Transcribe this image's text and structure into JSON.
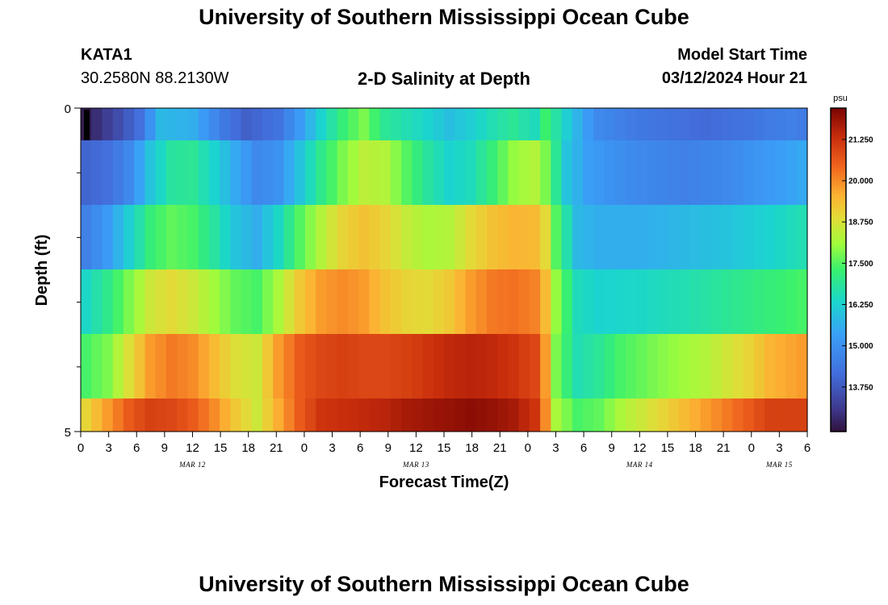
{
  "page": {
    "title": "University of Southern Mississippi Ocean Cube",
    "station": "KATA1",
    "coordinates": "30.2580N  88.2130W",
    "subtitle": "2-D Salinity at Depth",
    "model_start_label": "Model Start Time",
    "model_start_value": "03/12/2024 Hour 21",
    "bottom_title": "University of Southern Mississippi Ocean Cube"
  },
  "chart_data": {
    "type": "heatmap",
    "title": "2-D Salinity at Depth",
    "xlabel": "Forecast Time(Z)",
    "ylabel": "Depth (ft)",
    "units": "psu",
    "ylim": [
      0,
      5
    ],
    "y_ticks": [
      "0",
      "5"
    ],
    "x_tick_labels": [
      "0",
      "3",
      "6",
      "9",
      "12",
      "15",
      "18",
      "21",
      "0",
      "3",
      "6",
      "9",
      "12",
      "15",
      "18",
      "21",
      "0",
      "3",
      "6",
      "9",
      "12",
      "15",
      "18",
      "21",
      "0",
      "3",
      "6"
    ],
    "date_labels": [
      {
        "label": "MAR 12",
        "hour_index": 4
      },
      {
        "label": "MAR 13",
        "hour_index": 12
      },
      {
        "label": "MAR 14",
        "hour_index": 20
      },
      {
        "label": "MAR 15",
        "hour_index": 25
      }
    ],
    "colorbar": {
      "min": 12.4,
      "max": 22.2,
      "tick_values": [
        21.25,
        20.0,
        18.75,
        17.5,
        16.25,
        15.0,
        13.75
      ],
      "tick_labels": [
        "21.250",
        "20.000",
        "18.750",
        "17.500",
        "16.250",
        "15.000",
        "13.750"
      ]
    },
    "depth_layers": [
      {
        "name": "layer-1",
        "keyframes": [
          [
            0,
            12.6
          ],
          [
            1,
            12.9
          ],
          [
            3,
            13.5
          ],
          [
            5,
            14.2
          ],
          [
            7,
            15.8
          ],
          [
            10,
            15.6
          ],
          [
            13,
            14.4
          ],
          [
            15,
            13.9
          ],
          [
            18,
            14.3
          ],
          [
            20,
            15.2
          ],
          [
            22,
            16.3
          ],
          [
            24,
            17.2
          ],
          [
            26,
            17.8
          ],
          [
            28,
            16.9
          ],
          [
            30,
            16.6
          ],
          [
            32,
            16.3
          ],
          [
            34,
            15.9
          ],
          [
            36,
            16.2
          ],
          [
            38,
            16.6
          ],
          [
            40,
            16.9
          ],
          [
            42,
            16.5
          ],
          [
            43,
            17.3
          ],
          [
            45,
            16.2
          ],
          [
            47,
            15.2
          ],
          [
            48,
            14.8
          ],
          [
            50,
            14.6
          ],
          [
            52,
            14.4
          ],
          [
            54,
            14.3
          ],
          [
            56,
            14.2
          ],
          [
            58,
            14.1
          ],
          [
            60,
            14.2
          ],
          [
            62,
            14.3
          ],
          [
            64,
            14.5
          ],
          [
            66,
            14.6
          ],
          [
            67,
            14.5
          ]
        ]
      },
      {
        "name": "layer-2",
        "keyframes": [
          [
            0,
            14.0
          ],
          [
            2,
            14.2
          ],
          [
            4,
            14.8
          ],
          [
            6,
            16.0
          ],
          [
            8,
            16.8
          ],
          [
            10,
            16.9
          ],
          [
            12,
            16.3
          ],
          [
            14,
            15.5
          ],
          [
            16,
            14.8
          ],
          [
            18,
            15.0
          ],
          [
            20,
            16.0
          ],
          [
            22,
            17.0
          ],
          [
            24,
            17.8
          ],
          [
            26,
            18.4
          ],
          [
            28,
            18.3
          ],
          [
            30,
            17.5
          ],
          [
            32,
            16.8
          ],
          [
            34,
            16.3
          ],
          [
            36,
            16.5
          ],
          [
            38,
            17.2
          ],
          [
            40,
            18.0
          ],
          [
            42,
            18.3
          ],
          [
            43,
            17.8
          ],
          [
            45,
            16.0
          ],
          [
            47,
            15.3
          ],
          [
            49,
            15.0
          ],
          [
            52,
            14.8
          ],
          [
            56,
            14.6
          ],
          [
            60,
            14.8
          ],
          [
            64,
            15.2
          ],
          [
            67,
            15.5
          ]
        ]
      },
      {
        "name": "layer-3",
        "keyframes": [
          [
            0,
            14.6
          ],
          [
            2,
            15.2
          ],
          [
            4,
            16.2
          ],
          [
            6,
            17.2
          ],
          [
            8,
            17.6
          ],
          [
            10,
            17.4
          ],
          [
            12,
            16.8
          ],
          [
            14,
            16.0
          ],
          [
            16,
            15.6
          ],
          [
            18,
            16.4
          ],
          [
            20,
            17.5
          ],
          [
            22,
            18.3
          ],
          [
            24,
            19.0
          ],
          [
            26,
            19.3
          ],
          [
            28,
            19.0
          ],
          [
            30,
            18.5
          ],
          [
            32,
            18.2
          ],
          [
            34,
            18.3
          ],
          [
            36,
            18.9
          ],
          [
            38,
            19.3
          ],
          [
            40,
            19.5
          ],
          [
            42,
            19.4
          ],
          [
            43,
            18.9
          ],
          [
            44,
            17.5
          ],
          [
            46,
            15.8
          ],
          [
            48,
            15.6
          ],
          [
            52,
            15.6
          ],
          [
            56,
            15.8
          ],
          [
            60,
            16.0
          ],
          [
            64,
            16.3
          ],
          [
            67,
            16.6
          ]
        ]
      },
      {
        "name": "layer-4",
        "keyframes": [
          [
            0,
            16.4
          ],
          [
            2,
            17.0
          ],
          [
            4,
            17.8
          ],
          [
            6,
            18.6
          ],
          [
            8,
            18.9
          ],
          [
            10,
            18.6
          ],
          [
            12,
            18.1
          ],
          [
            14,
            17.6
          ],
          [
            16,
            17.4
          ],
          [
            18,
            18.2
          ],
          [
            20,
            19.2
          ],
          [
            22,
            19.8
          ],
          [
            24,
            20.0
          ],
          [
            26,
            19.8
          ],
          [
            28,
            19.3
          ],
          [
            30,
            19.0
          ],
          [
            32,
            18.9
          ],
          [
            34,
            19.2
          ],
          [
            36,
            19.8
          ],
          [
            38,
            20.2
          ],
          [
            40,
            20.3
          ],
          [
            42,
            20.1
          ],
          [
            43,
            19.4
          ],
          [
            44,
            18.0
          ],
          [
            46,
            16.5
          ],
          [
            48,
            16.3
          ],
          [
            52,
            16.4
          ],
          [
            56,
            16.6
          ],
          [
            60,
            16.9
          ],
          [
            64,
            17.2
          ],
          [
            67,
            17.4
          ]
        ]
      },
      {
        "name": "layer-5",
        "keyframes": [
          [
            0,
            17.4
          ],
          [
            2,
            17.8
          ],
          [
            4,
            18.8
          ],
          [
            6,
            19.8
          ],
          [
            8,
            20.2
          ],
          [
            10,
            20.0
          ],
          [
            12,
            19.4
          ],
          [
            14,
            18.8
          ],
          [
            16,
            18.6
          ],
          [
            18,
            19.8
          ],
          [
            20,
            20.6
          ],
          [
            22,
            20.9
          ],
          [
            24,
            21.0
          ],
          [
            26,
            20.9
          ],
          [
            28,
            20.9
          ],
          [
            30,
            21.0
          ],
          [
            32,
            21.2
          ],
          [
            34,
            21.4
          ],
          [
            36,
            21.5
          ],
          [
            38,
            21.4
          ],
          [
            40,
            21.2
          ],
          [
            42,
            20.9
          ],
          [
            43,
            19.8
          ],
          [
            44,
            17.8
          ],
          [
            46,
            16.6
          ],
          [
            48,
            16.9
          ],
          [
            50,
            17.4
          ],
          [
            54,
            17.9
          ],
          [
            58,
            18.3
          ],
          [
            62,
            19.0
          ],
          [
            64,
            19.5
          ],
          [
            67,
            19.8
          ]
        ]
      },
      {
        "name": "layer-6",
        "keyframes": [
          [
            0,
            19.0
          ],
          [
            2,
            19.8
          ],
          [
            4,
            20.6
          ],
          [
            6,
            21.0
          ],
          [
            8,
            20.9
          ],
          [
            10,
            20.6
          ],
          [
            12,
            20.0
          ],
          [
            14,
            19.2
          ],
          [
            16,
            18.6
          ],
          [
            18,
            19.6
          ],
          [
            20,
            20.6
          ],
          [
            22,
            21.2
          ],
          [
            24,
            21.3
          ],
          [
            26,
            21.4
          ],
          [
            28,
            21.5
          ],
          [
            30,
            21.7
          ],
          [
            32,
            21.8
          ],
          [
            34,
            21.9
          ],
          [
            36,
            22.0
          ],
          [
            38,
            21.9
          ],
          [
            40,
            21.7
          ],
          [
            42,
            21.2
          ],
          [
            43,
            20.0
          ],
          [
            44,
            18.2
          ],
          [
            46,
            17.4
          ],
          [
            48,
            17.6
          ],
          [
            50,
            18.2
          ],
          [
            54,
            19.0
          ],
          [
            58,
            19.8
          ],
          [
            62,
            20.6
          ],
          [
            64,
            21.0
          ],
          [
            67,
            21.0
          ]
        ]
      }
    ]
  }
}
